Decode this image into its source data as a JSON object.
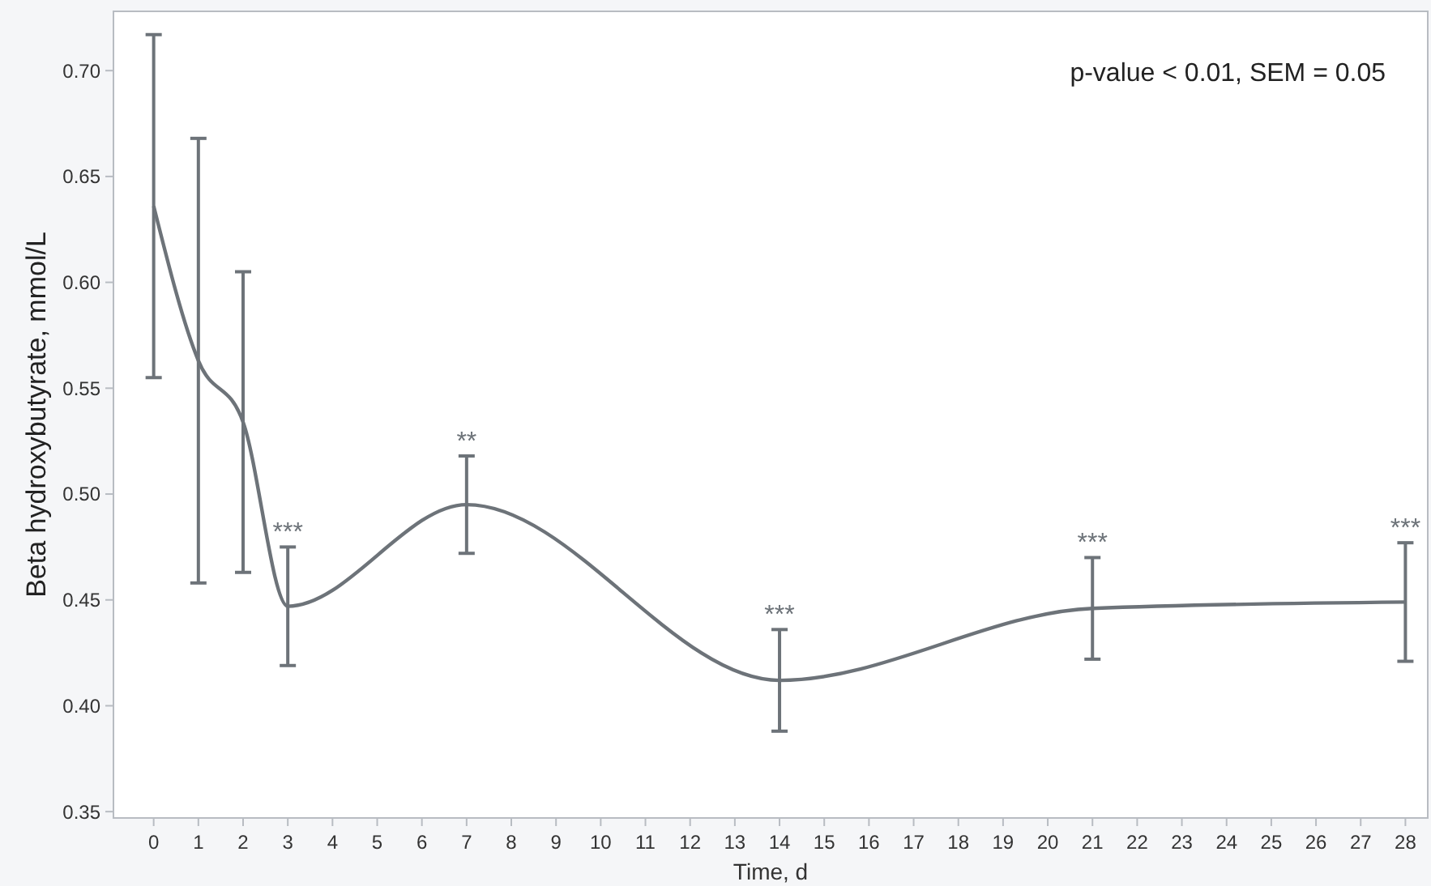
{
  "chart_data": {
    "type": "line",
    "xlabel": "Time, d",
    "ylabel": "Beta hydroxybutyrate, mmol/L",
    "x": [
      0,
      1,
      2,
      3,
      7,
      14,
      21,
      28
    ],
    "series": [
      {
        "color": "#6d7379",
        "values": [
          0.636,
          0.563,
          0.534,
          0.447,
          0.495,
          0.412,
          0.446,
          0.449
        ],
        "errors": [
          0.081,
          0.105,
          0.071,
          0.028,
          0.023,
          0.024,
          0.024,
          0.028
        ]
      }
    ],
    "xlim": [
      -0.9,
      28.5
    ],
    "xticks": [
      0,
      1,
      2,
      3,
      4,
      5,
      6,
      7,
      8,
      9,
      10,
      11,
      12,
      13,
      14,
      15,
      16,
      17,
      18,
      19,
      20,
      21,
      22,
      23,
      24,
      25,
      26,
      27,
      28
    ],
    "ylim": [
      0.347,
      0.728
    ],
    "yticks": [
      0.35,
      {
        "value": 0.4,
        "label": "0.40"
      },
      0.45,
      {
        "value": 0.5,
        "label": "0.50"
      },
      0.55,
      {
        "value": 0.6,
        "label": "0.60"
      },
      0.65,
      {
        "value": 0.7,
        "label": "0.70"
      }
    ],
    "grid": false,
    "marker": "none",
    "line_style": "solid",
    "annotations": [
      {
        "text": "***",
        "x": 3,
        "y": 0.475
      },
      {
        "text": "**",
        "x": 7,
        "y": 0.518
      },
      {
        "text": "***",
        "x": 14,
        "y": 0.436
      },
      {
        "text": "***",
        "x": 21,
        "y": 0.47
      },
      {
        "text": "***",
        "x": 28,
        "y": 0.477
      },
      "p-value < 0.01, SEM = 0.05"
    ]
  }
}
